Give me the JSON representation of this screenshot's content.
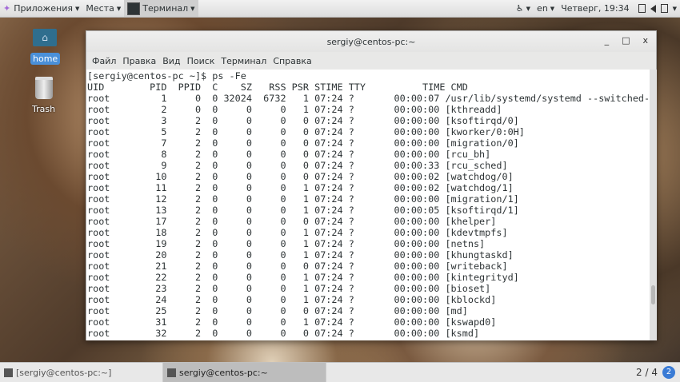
{
  "topbar": {
    "apps": "Приложения",
    "places": "Места",
    "active_app": "Терминал",
    "lang": "en",
    "clock": "Четверг, 19:34"
  },
  "desktop": {
    "home": "home",
    "trash": "Trash"
  },
  "window": {
    "title": "sergiy@centos-pc:~",
    "minimize": "_",
    "maximize": "□",
    "close": "x",
    "menu": [
      "Файл",
      "Правка",
      "Вид",
      "Поиск",
      "Терминал",
      "Справка"
    ]
  },
  "terminal": {
    "prompt": "[sergiy@centos-pc ~]$ ps -Fe",
    "columns": [
      "UID",
      "PID",
      "PPID",
      "C",
      "SZ",
      "RSS",
      "PSR",
      "STIME",
      "TTY",
      "TIME",
      "CMD"
    ],
    "rows": [
      [
        "root",
        "1",
        "0",
        "0",
        "32024",
        "6732",
        "1",
        "07:24",
        "?",
        "00:00:07",
        "/usr/lib/systemd/systemd --switched-roo"
      ],
      [
        "root",
        "2",
        "0",
        "0",
        "0",
        "0",
        "1",
        "07:24",
        "?",
        "00:00:00",
        "[kthreadd]"
      ],
      [
        "root",
        "3",
        "2",
        "0",
        "0",
        "0",
        "0",
        "07:24",
        "?",
        "00:00:00",
        "[ksoftirqd/0]"
      ],
      [
        "root",
        "5",
        "2",
        "0",
        "0",
        "0",
        "0",
        "07:24",
        "?",
        "00:00:00",
        "[kworker/0:0H]"
      ],
      [
        "root",
        "7",
        "2",
        "0",
        "0",
        "0",
        "0",
        "07:24",
        "?",
        "00:00:00",
        "[migration/0]"
      ],
      [
        "root",
        "8",
        "2",
        "0",
        "0",
        "0",
        "0",
        "07:24",
        "?",
        "00:00:00",
        "[rcu_bh]"
      ],
      [
        "root",
        "9",
        "2",
        "0",
        "0",
        "0",
        "0",
        "07:24",
        "?",
        "00:00:33",
        "[rcu_sched]"
      ],
      [
        "root",
        "10",
        "2",
        "0",
        "0",
        "0",
        "0",
        "07:24",
        "?",
        "00:00:02",
        "[watchdog/0]"
      ],
      [
        "root",
        "11",
        "2",
        "0",
        "0",
        "0",
        "1",
        "07:24",
        "?",
        "00:00:02",
        "[watchdog/1]"
      ],
      [
        "root",
        "12",
        "2",
        "0",
        "0",
        "0",
        "1",
        "07:24",
        "?",
        "00:00:00",
        "[migration/1]"
      ],
      [
        "root",
        "13",
        "2",
        "0",
        "0",
        "0",
        "1",
        "07:24",
        "?",
        "00:00:05",
        "[ksoftirqd/1]"
      ],
      [
        "root",
        "17",
        "2",
        "0",
        "0",
        "0",
        "0",
        "07:24",
        "?",
        "00:00:00",
        "[khelper]"
      ],
      [
        "root",
        "18",
        "2",
        "0",
        "0",
        "0",
        "1",
        "07:24",
        "?",
        "00:00:00",
        "[kdevtmpfs]"
      ],
      [
        "root",
        "19",
        "2",
        "0",
        "0",
        "0",
        "1",
        "07:24",
        "?",
        "00:00:00",
        "[netns]"
      ],
      [
        "root",
        "20",
        "2",
        "0",
        "0",
        "0",
        "1",
        "07:24",
        "?",
        "00:00:00",
        "[khungtaskd]"
      ],
      [
        "root",
        "21",
        "2",
        "0",
        "0",
        "0",
        "0",
        "07:24",
        "?",
        "00:00:00",
        "[writeback]"
      ],
      [
        "root",
        "22",
        "2",
        "0",
        "0",
        "0",
        "1",
        "07:24",
        "?",
        "00:00:00",
        "[kintegrityd]"
      ],
      [
        "root",
        "23",
        "2",
        "0",
        "0",
        "0",
        "1",
        "07:24",
        "?",
        "00:00:00",
        "[bioset]"
      ],
      [
        "root",
        "24",
        "2",
        "0",
        "0",
        "0",
        "1",
        "07:24",
        "?",
        "00:00:00",
        "[kblockd]"
      ],
      [
        "root",
        "25",
        "2",
        "0",
        "0",
        "0",
        "0",
        "07:24",
        "?",
        "00:00:00",
        "[md]"
      ],
      [
        "root",
        "31",
        "2",
        "0",
        "0",
        "0",
        "1",
        "07:24",
        "?",
        "00:00:00",
        "[kswapd0]"
      ],
      [
        "root",
        "32",
        "2",
        "0",
        "0",
        "0",
        "0",
        "07:24",
        "?",
        "00:00:00",
        "[ksmd]"
      ]
    ]
  },
  "taskbar": {
    "tasks": [
      "[sergiy@centos-pc:~]",
      "sergiy@centos-pc:~"
    ],
    "workspace": "2 / 4",
    "workspace_badge": "2"
  }
}
